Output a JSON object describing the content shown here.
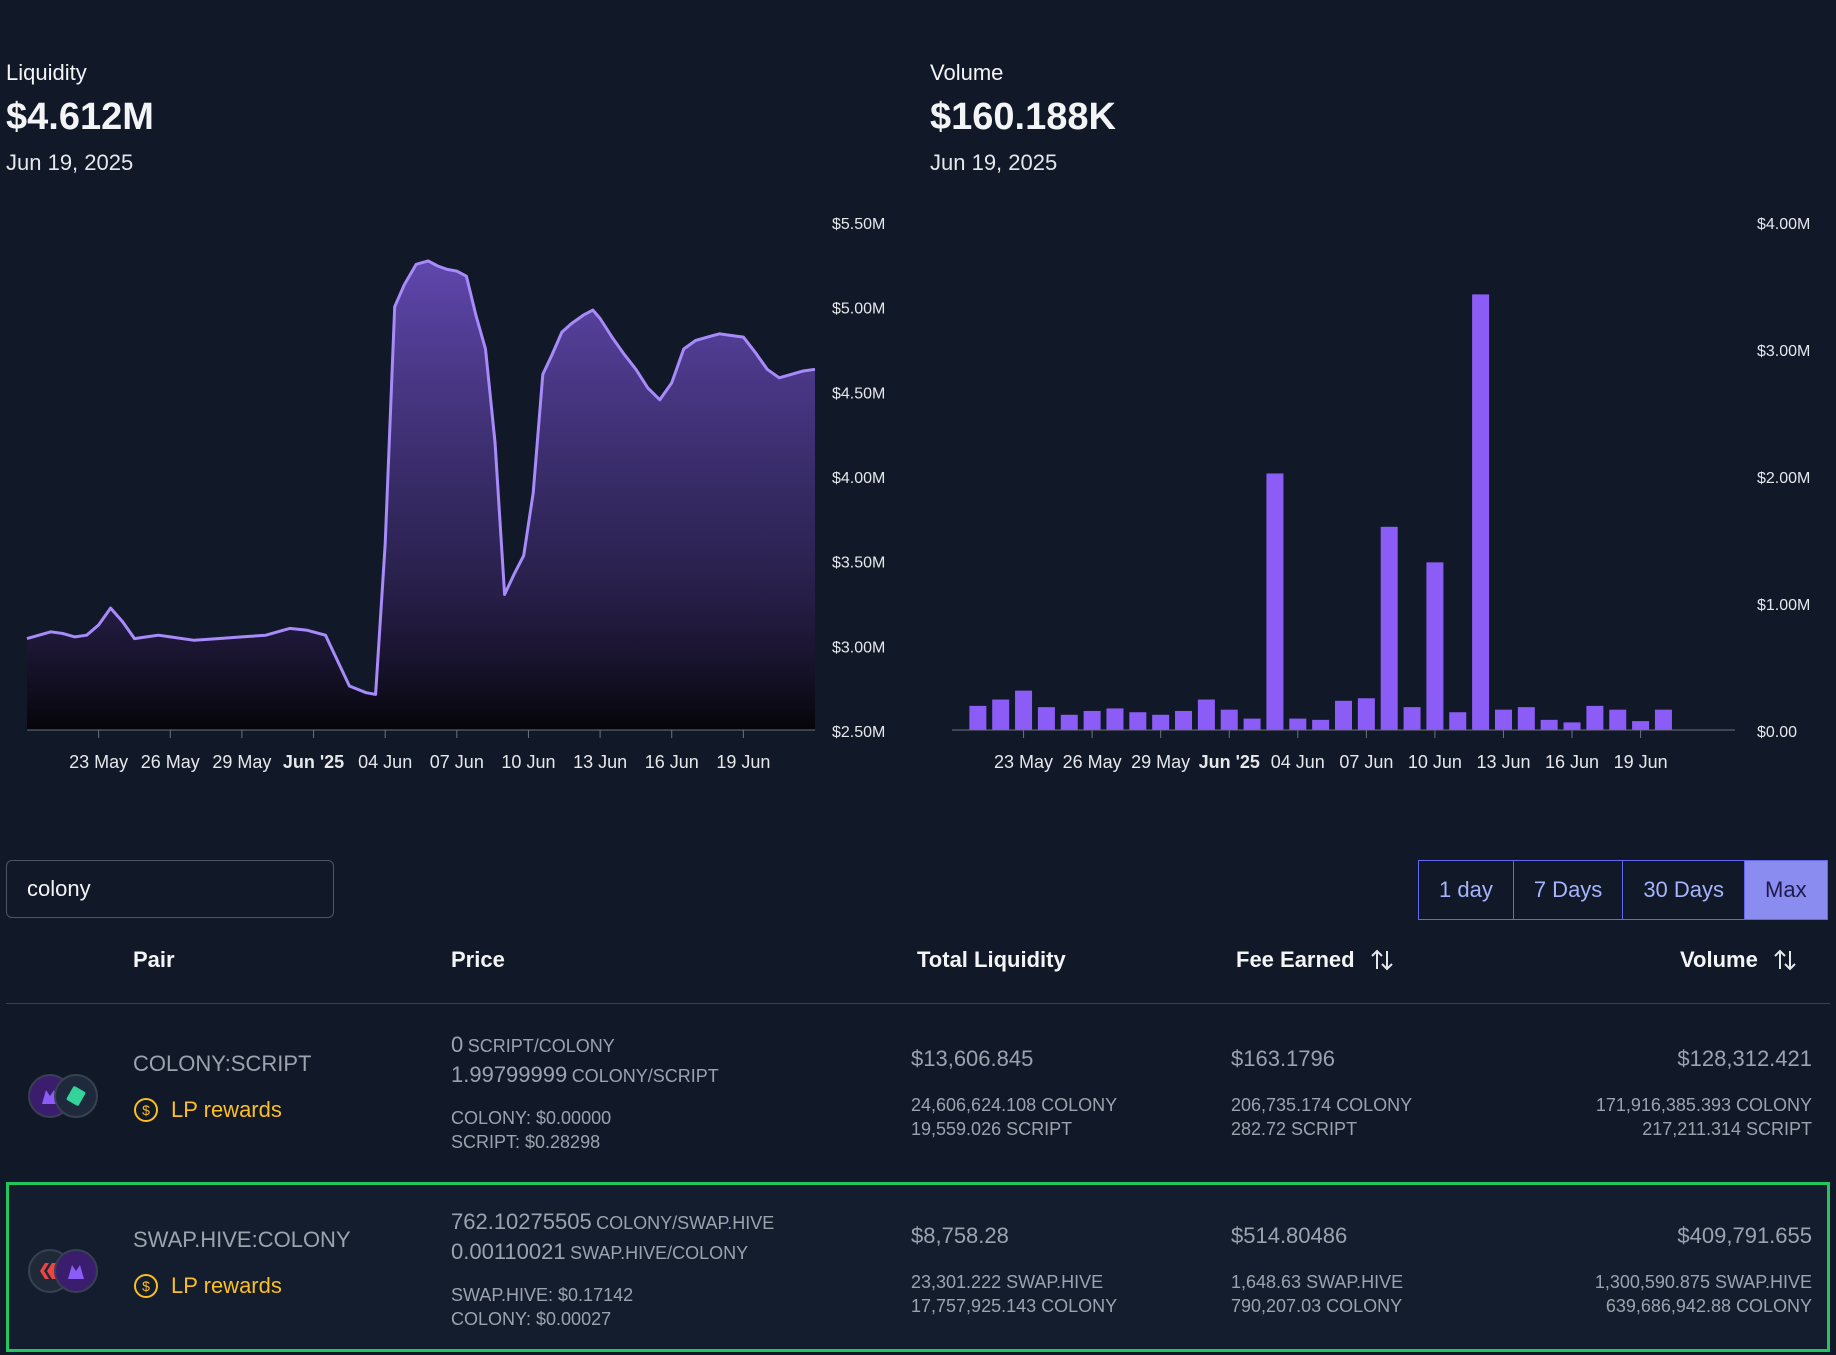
{
  "liquidity": {
    "label": "Liquidity",
    "value": "$4.612M",
    "date": "Jun 19, 2025"
  },
  "volume": {
    "label": "Volume",
    "value": "$160.188K",
    "date": "Jun 19, 2025"
  },
  "chart_data": [
    {
      "type": "area",
      "title": "Liquidity",
      "x_ticks": [
        "23 May",
        "26 May",
        "29 May",
        "Jun '25",
        "04 Jun",
        "07 Jun",
        "10 Jun",
        "13 Jun",
        "16 Jun",
        "19 Jun"
      ],
      "y_ticks": [
        "$2.50M",
        "$3.00M",
        "$3.50M",
        "$4.00M",
        "$4.50M",
        "$5.00M",
        "$5.50M"
      ],
      "ylim": [
        2.5,
        5.5
      ],
      "y_unit": "$M",
      "x_day_range": [
        -3,
        30
      ],
      "series": [
        {
          "x": [
            -3,
            -2.5,
            -2,
            -1.5,
            -1,
            -0.5,
            0,
            0.5,
            1,
            1.5,
            2,
            2.5,
            3,
            4,
            5,
            6,
            7,
            8,
            8.7,
            9.5,
            10.5,
            11.2,
            11.6,
            12,
            12.4,
            12.8,
            13.3,
            13.8,
            14.2,
            14.6,
            15,
            15.4,
            15.8,
            16.2,
            16.6,
            17,
            17.4,
            17.8,
            18.2,
            18.6,
            19,
            19.4,
            19.8,
            20.3,
            20.7,
            21,
            21.5,
            22,
            22.5,
            23,
            23.5,
            24,
            24.5,
            25,
            25.5,
            26,
            26.5,
            27,
            27.5,
            28,
            28.5,
            29,
            29.5,
            30
          ],
          "y": [
            3.04,
            3.06,
            3.08,
            3.07,
            3.05,
            3.06,
            3.12,
            3.22,
            3.14,
            3.04,
            3.05,
            3.06,
            3.05,
            3.03,
            3.04,
            3.05,
            3.06,
            3.1,
            3.09,
            3.06,
            2.76,
            2.72,
            2.71,
            3.6,
            5.0,
            5.13,
            5.25,
            5.27,
            5.24,
            5.22,
            5.21,
            5.18,
            4.95,
            4.75,
            4.2,
            3.3,
            3.42,
            3.53,
            3.9,
            4.6,
            4.72,
            4.85,
            4.9,
            4.95,
            4.98,
            4.93,
            4.82,
            4.72,
            4.63,
            4.52,
            4.45,
            4.55,
            4.75,
            4.8,
            4.82,
            4.84,
            4.83,
            4.82,
            4.73,
            4.63,
            4.58,
            4.6,
            4.62,
            4.63
          ]
        }
      ]
    },
    {
      "type": "bar",
      "title": "Volume",
      "x_ticks": [
        "23 May",
        "26 May",
        "29 May",
        "Jun '25",
        "04 Jun",
        "07 Jun",
        "10 Jun",
        "13 Jun",
        "16 Jun",
        "19 Jun"
      ],
      "y_ticks": [
        "$0.00",
        "$1.00M",
        "$2.00M",
        "$3.00M",
        "$4.00M"
      ],
      "ylim": [
        0,
        4
      ],
      "y_unit": "$M",
      "x_day_range": [
        -3,
        31
      ],
      "bar_start_day": -2,
      "values": [
        0.19,
        0.24,
        0.31,
        0.18,
        0.12,
        0.15,
        0.17,
        0.14,
        0.12,
        0.15,
        0.24,
        0.16,
        0.09,
        2.02,
        0.09,
        0.08,
        0.23,
        0.25,
        1.6,
        0.18,
        1.32,
        0.14,
        3.43,
        0.16,
        0.18,
        0.08,
        0.06,
        0.19,
        0.16,
        0.07,
        0.16
      ]
    }
  ],
  "search": {
    "value": "colony"
  },
  "range": {
    "buttons": [
      "1 day",
      "7 Days",
      "30 Days",
      "Max"
    ],
    "active": "Max"
  },
  "table": {
    "headers": {
      "pair": "Pair",
      "price": "Price",
      "liquidity": "Total Liquidity",
      "fee": "Fee Earned",
      "volume": "Volume"
    },
    "rows": [
      {
        "pair": "COLONY:SCRIPT",
        "lp": "LP rewards",
        "price1_value": "0",
        "price1_unit": "SCRIPT/COLONY",
        "price2_value": "1.99799999",
        "price2_unit": "COLONY/SCRIPT",
        "usd1": "COLONY: $0.00000",
        "usd2": "SCRIPT: $0.28298",
        "liq_usd": "$13,606.845",
        "liq_a": "24,606,624.108 COLONY",
        "liq_b": "19,559.026 SCRIPT",
        "fee_usd": "$163.1796",
        "fee_a": "206,735.174 COLONY",
        "fee_b": "282.72 SCRIPT",
        "vol_usd": "$128,312.421",
        "vol_a": "171,916,385.393 COLONY",
        "vol_b": "217,211.314 SCRIPT"
      },
      {
        "pair": "SWAP.HIVE:COLONY",
        "lp": "LP rewards",
        "price1_value": "762.10275505",
        "price1_unit": "COLONY/SWAP.HIVE",
        "price2_value": "0.00110021",
        "price2_unit": "SWAP.HIVE/COLONY",
        "usd1": "SWAP.HIVE: $0.17142",
        "usd2": "COLONY: $0.00027",
        "liq_usd": "$8,758.28",
        "liq_a": "23,301.222 SWAP.HIVE",
        "liq_b": "17,757,925.143 COLONY",
        "fee_usd": "$514.80486",
        "fee_a": "1,648.63 SWAP.HIVE",
        "fee_b": "790,207.03 COLONY",
        "vol_usd": "$409,791.655",
        "vol_a": "1,300,590.875 SWAP.HIVE",
        "vol_b": "639,686,942.88 COLONY"
      }
    ]
  },
  "colors": {
    "accent": "#8b5cf6",
    "line": "#a78bfa",
    "bar": "#8b5cf6",
    "lp": "#fbbf24",
    "highlight": "#22c55e"
  }
}
